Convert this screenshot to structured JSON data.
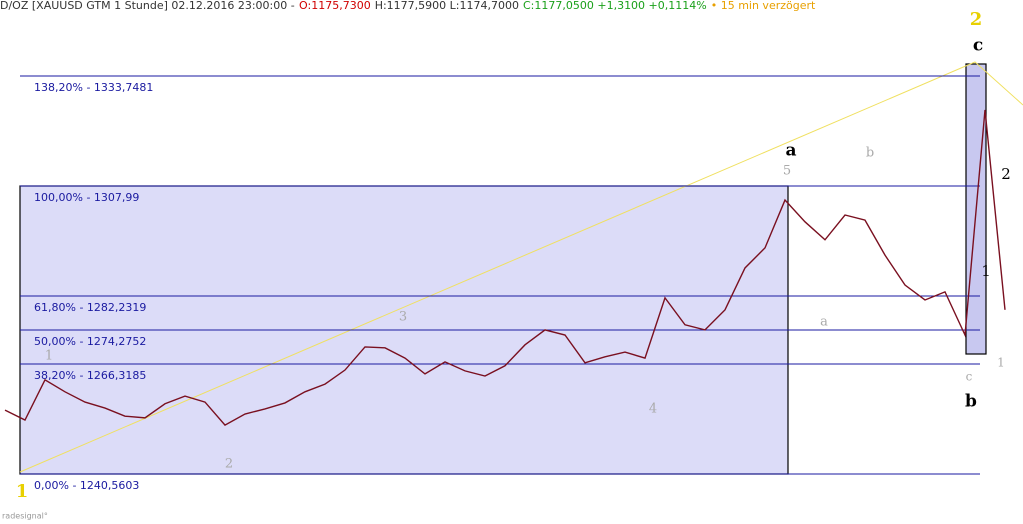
{
  "chart_data": {
    "type": "line",
    "title_parts": [
      {
        "text": "D/OZ [XAUUSD GTM 1 Stunde] 02.12.2016 23:00:00 -",
        "color": "#333333"
      },
      {
        "text": "O:1175,7300",
        "color": "#d00000"
      },
      {
        "text": "H:1177,5900 L:1174,7000",
        "color": "#333333"
      },
      {
        "text": "C:1177,0500 +1,3100 +0,1114%",
        "color": "#1aa01a"
      },
      {
        "text": "• 15 min verzögert",
        "color": "#e8a000"
      }
    ],
    "values": [
      1255.5,
      1253.2,
      1262.6,
      1259.8,
      1257.4,
      1256.0,
      1254.1,
      1253.7,
      1257.0,
      1258.8,
      1257.4,
      1252.0,
      1254.6,
      1255.8,
      1257.2,
      1259.8,
      1261.6,
      1264.9,
      1270.3,
      1270.1,
      1267.7,
      1264.0,
      1266.8,
      1264.7,
      1263.5,
      1265.9,
      1270.8,
      1274.3,
      1273.1,
      1266.6,
      1268.0,
      1269.1,
      1267.7,
      1281.8,
      1275.5,
      1274.3,
      1279.0,
      1288.8,
      1293.5,
      1304.7,
      1299.6,
      1295.4,
      1301.2,
      1300.0,
      1291.8,
      1284.8,
      1281.3,
      1283.2,
      1273.1,
      1325.8,
      1279.0
    ],
    "color": "#7a1020",
    "ylim": [
      1228.85,
      1351.54
    ],
    "fib_levels": [
      {
        "value": 1333.7481,
        "label": "138,20% - 1333,7481"
      },
      {
        "value": 1307.99,
        "label": "100,00% - 1307,99"
      },
      {
        "value": 1282.2319,
        "label": "61,80% - 1282,2319"
      },
      {
        "value": 1274.2752,
        "label": "50,00% - 1274,2752"
      },
      {
        "value": 1266.3185,
        "label": "38,20% - 1266,3185"
      },
      {
        "value": 1240.5603,
        "label": "0,00% - 1240,5603"
      }
    ],
    "wave_labels": [
      "1",
      "2",
      "1",
      "2",
      "3",
      "4",
      "5",
      "a",
      "b",
      "c",
      "a",
      "b",
      "c",
      "1",
      "2",
      "1"
    ],
    "logo": "radesignal°"
  }
}
